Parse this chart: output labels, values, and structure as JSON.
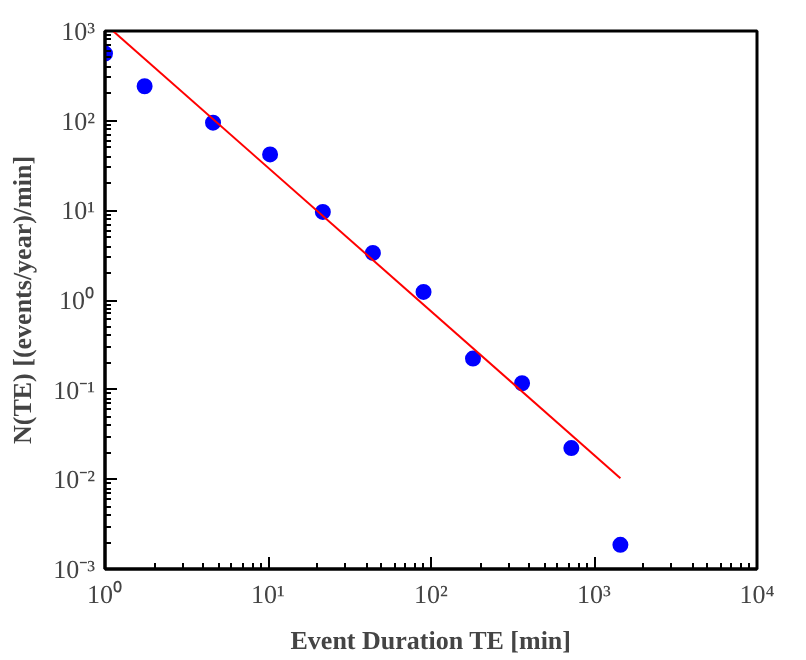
{
  "chart_data": {
    "type": "scatter",
    "xlabel": "Event Duration TE [min]",
    "ylabel": "N(TE) [(events/year)/min]",
    "log": "xy",
    "grid": false,
    "marker": "circle",
    "xlim": [
      1,
      10000
    ],
    "ylim": [
      0.001,
      1000
    ],
    "xticks": [
      {
        "value": 1,
        "label": "10⁰"
      },
      {
        "value": 10,
        "label": "10¹"
      },
      {
        "value": 100,
        "label": "10²"
      },
      {
        "value": 1000,
        "label": "10³"
      },
      {
        "value": 10000,
        "label": "10⁴"
      }
    ],
    "yticks": [
      {
        "value": 0.001,
        "label": "10⁻³"
      },
      {
        "value": 0.01,
        "label": "10⁻²"
      },
      {
        "value": 0.1,
        "label": "10⁻¹"
      },
      {
        "value": 1,
        "label": "10⁰"
      },
      {
        "value": 10,
        "label": "10¹"
      },
      {
        "value": 100,
        "label": "10²"
      },
      {
        "value": 1000,
        "label": "10³"
      }
    ],
    "series": [
      {
        "color": "#0000ff",
        "x": [
          1,
          1.75,
          4.6,
          10.3,
          21.7,
          44,
          90,
          181,
          362,
          726,
          1452
        ],
        "values": [
          560,
          242,
          95,
          42,
          9.6,
          3.35,
          1.23,
          0.222,
          0.118,
          0.0223,
          0.00186
        ]
      },
      {
        "type": "line",
        "color": "#ff0000",
        "marker": "none",
        "line_style": "solid",
        "x": [
          1.12,
          1452
        ],
        "values": [
          1000,
          0.0103
        ]
      }
    ]
  }
}
